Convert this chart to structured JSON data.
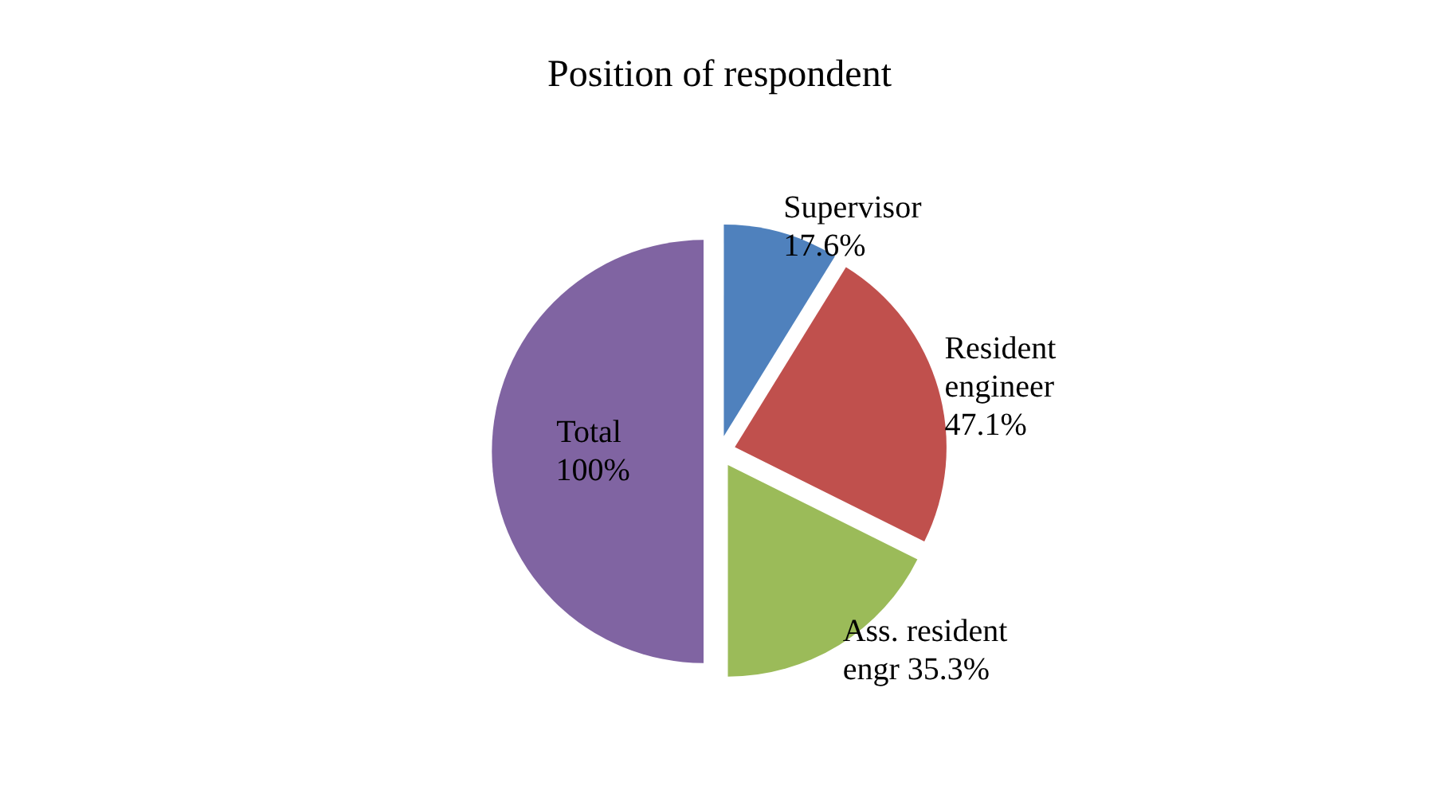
{
  "chart_data": {
    "type": "pie",
    "title": "Position of respondent",
    "categories": [
      "Supervisor",
      "Resident engineer",
      "Ass. resident engr",
      "Total"
    ],
    "values": [
      17.6,
      47.1,
      35.3,
      100
    ],
    "value_labels": [
      "17.6%",
      "47.1%",
      "35.3%",
      "100%"
    ],
    "colors": [
      "#4f81bd",
      "#c0504d",
      "#9bbb59",
      "#8064a2"
    ]
  }
}
